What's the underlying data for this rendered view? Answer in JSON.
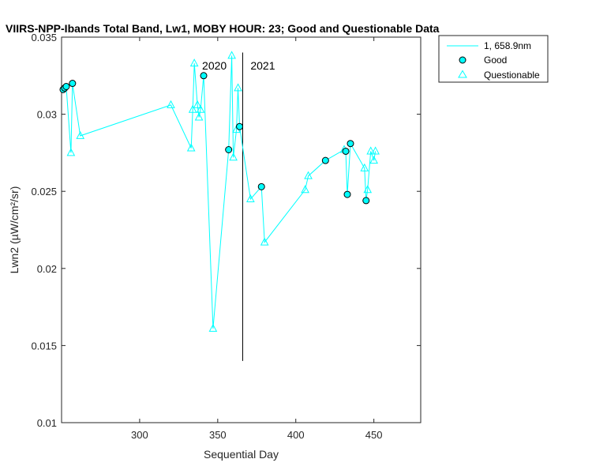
{
  "chart_data": {
    "type": "line",
    "title": "VIIRS-NPP-Ibands Total Band, Lw1, MOBY HOUR: 23;  Good and Questionable Data",
    "xlabel": "Sequential Day",
    "ylabel": "Lwn2 (µW/cm²/sr)",
    "xlim": [
      250,
      480
    ],
    "ylim": [
      0.01,
      0.035
    ],
    "xticks": [
      300,
      350,
      400,
      450
    ],
    "yticks": [
      0.01,
      0.015,
      0.02,
      0.025,
      0.03,
      0.035
    ],
    "xtick_labels": [
      "300",
      "350",
      "400",
      "450"
    ],
    "ytick_labels": [
      "0.01",
      "0.015",
      "0.02",
      "0.025",
      "0.03",
      "0.035"
    ],
    "grid": false,
    "legend_position": "outside-top-right",
    "colors": {
      "series": "#00ffff",
      "good_fill": "#00ffff",
      "good_edge": "#000000",
      "year_line": "#000000"
    },
    "series": [
      {
        "name": "1, 658.9nm",
        "x": [
          251,
          252,
          253,
          256,
          257,
          262,
          320,
          333,
          334,
          335,
          337,
          338,
          339,
          341,
          347,
          357,
          359,
          360,
          362,
          363,
          364,
          371,
          378,
          380,
          406,
          408,
          419,
          431,
          432,
          433,
          435,
          444,
          445,
          446,
          448,
          450,
          451
        ],
        "y": [
          0.0316,
          0.0317,
          0.0318,
          0.0275,
          0.032,
          0.0286,
          0.0306,
          0.0278,
          0.0303,
          0.0333,
          0.0306,
          0.0298,
          0.0303,
          0.0325,
          0.0161,
          0.0277,
          0.0338,
          0.0272,
          0.029,
          0.0317,
          0.0292,
          0.0245,
          0.0253,
          0.0217,
          0.0251,
          0.026,
          0.027,
          0.0277,
          0.0276,
          0.0248,
          0.0281,
          0.0265,
          0.0244,
          0.0251,
          0.0276,
          0.027,
          0.0276
        ]
      }
    ],
    "good": {
      "name": "Good",
      "x": [
        251,
        252,
        253,
        257,
        341,
        357,
        364,
        378,
        419,
        432,
        433,
        435,
        445
      ],
      "y": [
        0.0316,
        0.0317,
        0.0318,
        0.032,
        0.0325,
        0.0277,
        0.0292,
        0.0253,
        0.027,
        0.0276,
        0.0248,
        0.0281,
        0.0244
      ]
    },
    "questionable": {
      "name": "Questionable",
      "x": [
        256,
        262,
        320,
        333,
        334,
        335,
        337,
        338,
        339,
        347,
        359,
        360,
        362,
        363,
        371,
        380,
        406,
        408,
        431,
        444,
        446,
        448,
        450,
        451
      ],
      "y": [
        0.0275,
        0.0286,
        0.0306,
        0.0278,
        0.0303,
        0.0333,
        0.0306,
        0.0298,
        0.0303,
        0.0161,
        0.0338,
        0.0272,
        0.029,
        0.0317,
        0.0245,
        0.0217,
        0.0251,
        0.026,
        0.0277,
        0.0265,
        0.0251,
        0.0276,
        0.027,
        0.0276
      ]
    },
    "year_divider": {
      "x": 366,
      "y_from": 0.014,
      "y_to": 0.034
    },
    "annotations": [
      {
        "text": "2020",
        "x": 340,
        "y": 0.0329
      },
      {
        "text": "2021",
        "x": 371,
        "y": 0.0329
      }
    ]
  }
}
